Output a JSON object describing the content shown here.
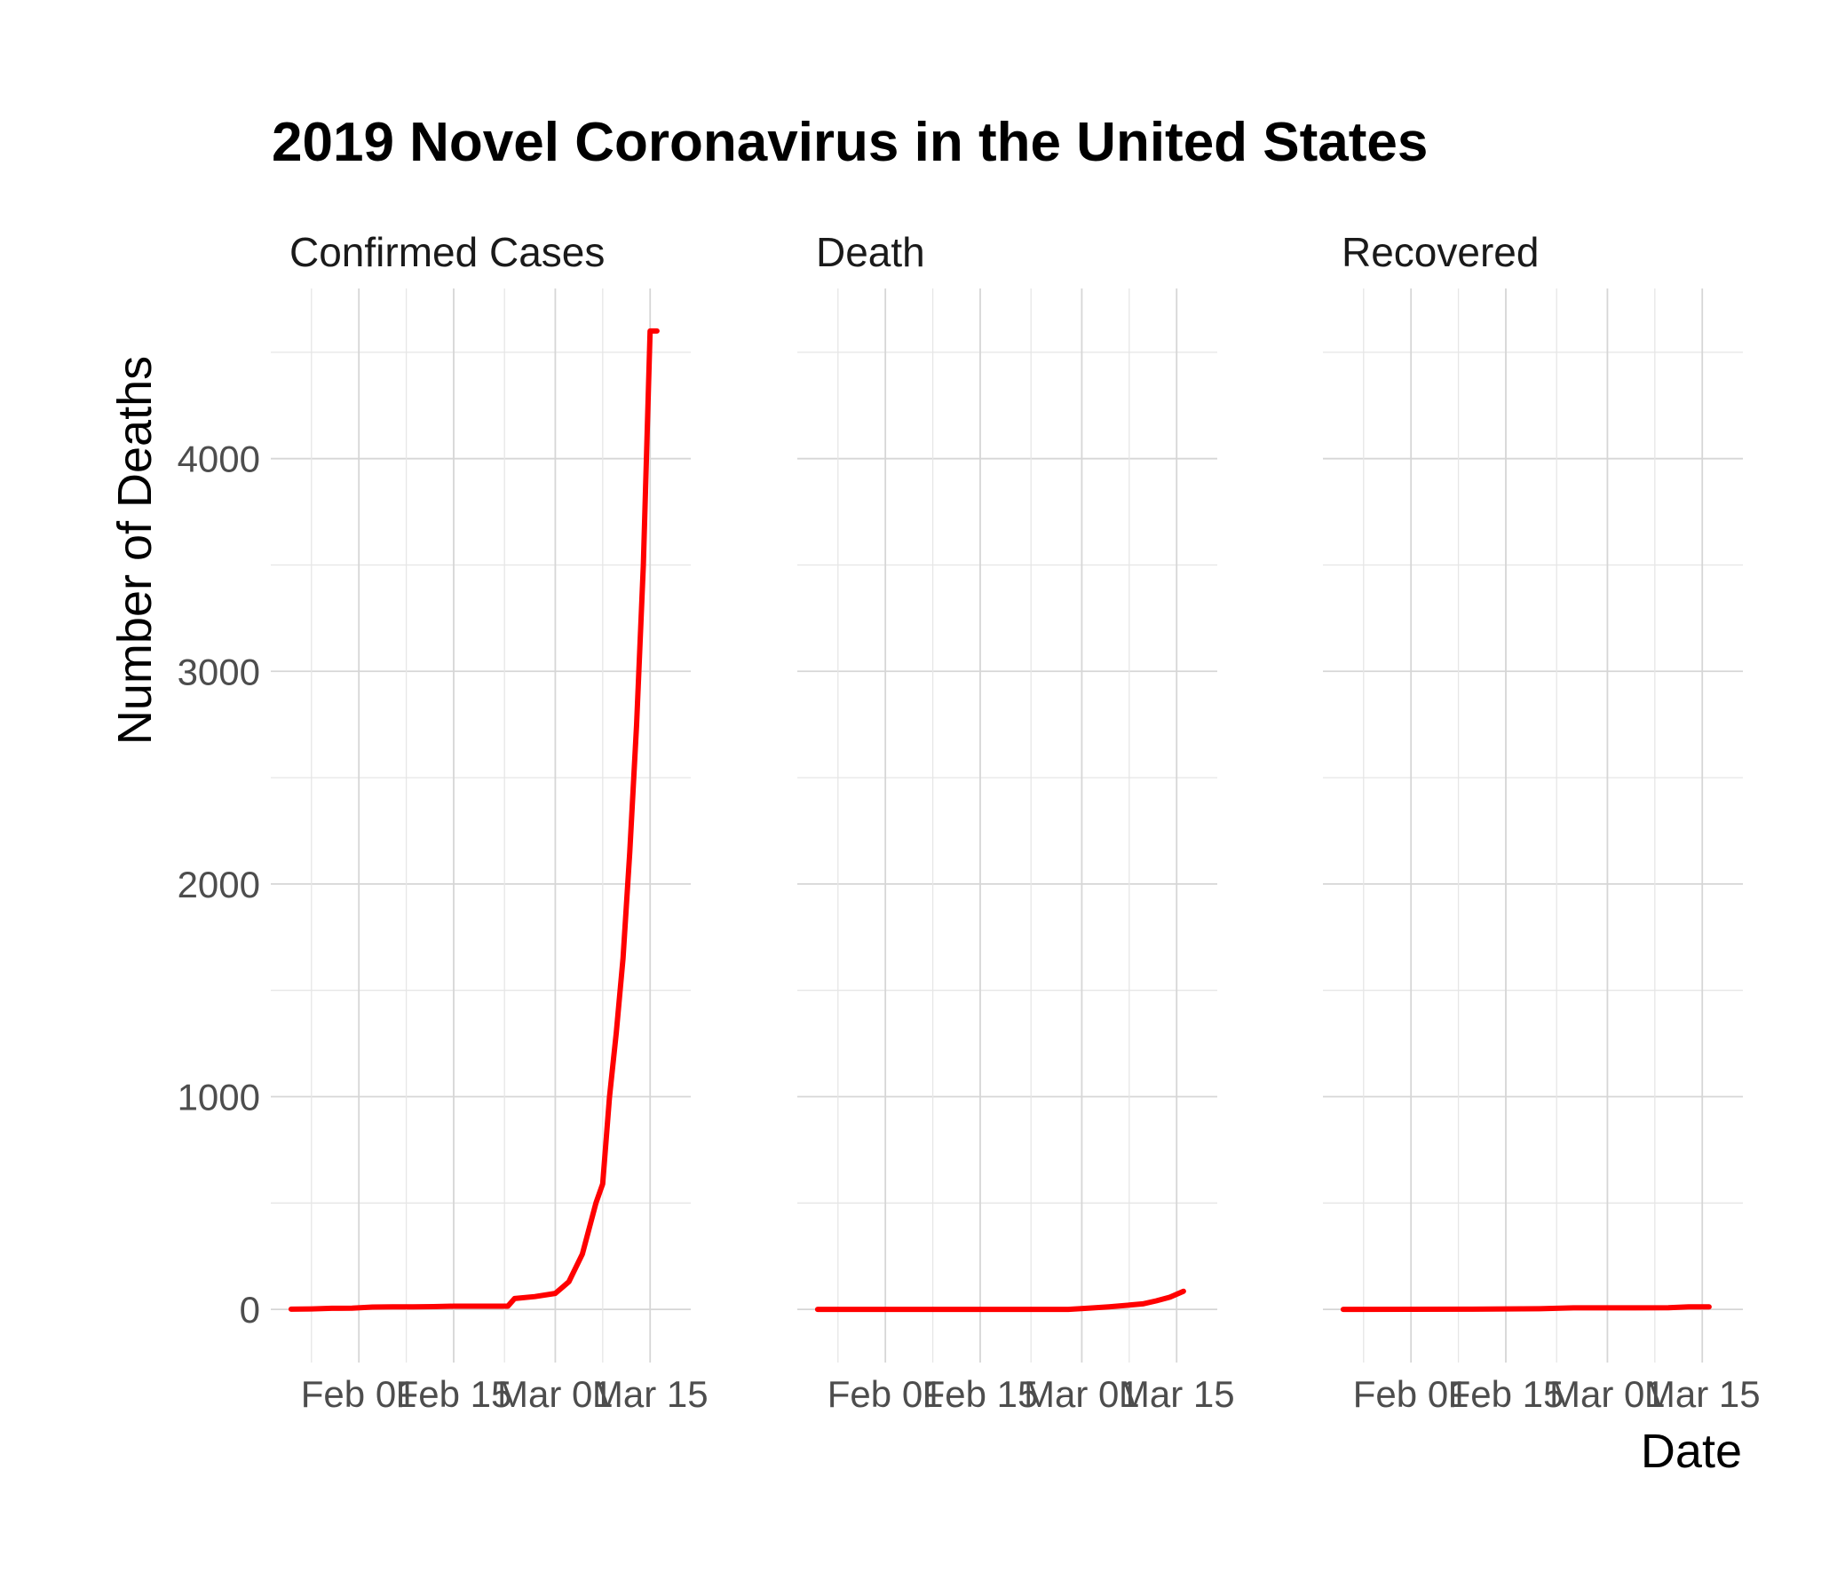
{
  "chart_data": {
    "type": "line",
    "title": "2019 Novel Coronavirus in the United States",
    "xlabel": "Date",
    "ylabel": "Number of Deaths",
    "line_color": "#ff0000",
    "grid": true,
    "legend": "none",
    "ylim": [
      -250,
      4800
    ],
    "xlim": [
      "2020-01-19",
      "2020-03-21"
    ],
    "y_ticks": [
      0,
      1000,
      2000,
      3000,
      4000
    ],
    "y_tick_labels": [
      "0",
      "1000",
      "2000",
      "3000",
      "4000"
    ],
    "x_ticks": [
      "2020-02-01",
      "2020-02-15",
      "2020-03-01",
      "2020-03-15"
    ],
    "x_tick_labels": [
      "Feb 01",
      "Feb 15",
      "Mar 01",
      "Mar 15"
    ],
    "facets": [
      {
        "name": "Confirmed Cases",
        "x": [
          "2020-01-22",
          "2020-01-25",
          "2020-01-28",
          "2020-01-31",
          "2020-02-03",
          "2020-02-06",
          "2020-02-09",
          "2020-02-12",
          "2020-02-15",
          "2020-02-18",
          "2020-02-21",
          "2020-02-23",
          "2020-02-24",
          "2020-02-27",
          "2020-03-01",
          "2020-03-03",
          "2020-03-05",
          "2020-03-07",
          "2020-03-08",
          "2020-03-09",
          "2020-03-10",
          "2020-03-11",
          "2020-03-12",
          "2020-03-13",
          "2020-03-14",
          "2020-03-15",
          "2020-03-16"
        ],
        "y": [
          1,
          2,
          5,
          6,
          11,
          12,
          12,
          13,
          15,
          15,
          15,
          15,
          51,
          60,
          75,
          130,
          260,
          500,
          590,
          1000,
          1300,
          1650,
          2150,
          2750,
          3500,
          4600,
          4600
        ]
      },
      {
        "name": "Death",
        "x": [
          "2020-01-22",
          "2020-02-05",
          "2020-02-19",
          "2020-02-28",
          "2020-03-02",
          "2020-03-05",
          "2020-03-08",
          "2020-03-10",
          "2020-03-12",
          "2020-03-14",
          "2020-03-16"
        ],
        "y": [
          0,
          0,
          0,
          0,
          6,
          12,
          20,
          26,
          40,
          57,
          85
        ]
      },
      {
        "name": "Recovered",
        "x": [
          "2020-01-22",
          "2020-02-10",
          "2020-02-20",
          "2020-02-25",
          "2020-03-05",
          "2020-03-10",
          "2020-03-13",
          "2020-03-16"
        ],
        "y": [
          0,
          1,
          3,
          7,
          7,
          8,
          12,
          12
        ]
      }
    ]
  }
}
